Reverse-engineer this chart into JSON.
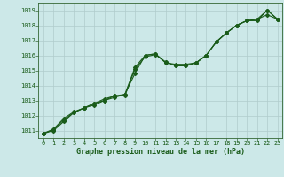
{
  "title": "Graphe pression niveau de la mer (hPa)",
  "background_color": "#cce8e8",
  "grid_color": "#b0cccc",
  "line_color": "#1a5c1a",
  "marker_color": "#1a5c1a",
  "xlim": [
    -0.5,
    23.5
  ],
  "ylim": [
    1010.5,
    1019.5
  ],
  "xticks": [
    0,
    1,
    2,
    3,
    4,
    5,
    6,
    7,
    8,
    9,
    10,
    11,
    12,
    13,
    14,
    15,
    16,
    17,
    18,
    19,
    20,
    21,
    22,
    23
  ],
  "yticks": [
    1011,
    1012,
    1013,
    1014,
    1015,
    1016,
    1017,
    1018,
    1019
  ],
  "series1_x": [
    0,
    1,
    2,
    3,
    4,
    5,
    6,
    7,
    8,
    9,
    10,
    11,
    12,
    13,
    14,
    15,
    16,
    17,
    18,
    19,
    20,
    21,
    22,
    23
  ],
  "series1_y": [
    1010.8,
    1011.0,
    1011.6,
    1012.2,
    1012.5,
    1012.7,
    1013.0,
    1013.2,
    1013.4,
    1014.8,
    1016.0,
    1016.1,
    1015.55,
    1015.3,
    1015.3,
    1015.5,
    1016.0,
    1016.9,
    1017.5,
    1018.0,
    1018.3,
    1018.3,
    1019.0,
    1018.4
  ],
  "series2_x": [
    0,
    1,
    2,
    3,
    4,
    5,
    6,
    7,
    8,
    9,
    10,
    11,
    12,
    13,
    14,
    15,
    16,
    17,
    18,
    19,
    20,
    21,
    22,
    23
  ],
  "series2_y": [
    1010.8,
    1011.05,
    1011.7,
    1012.2,
    1012.5,
    1012.8,
    1013.0,
    1013.3,
    1013.3,
    1015.1,
    1015.9,
    1016.05,
    1015.55,
    1015.3,
    1015.3,
    1015.5,
    1016.0,
    1016.9,
    1017.5,
    1018.0,
    1018.3,
    1018.4,
    1019.0,
    1018.4
  ],
  "series3_x": [
    0,
    1,
    2,
    3,
    4,
    5,
    6,
    7,
    8,
    9,
    10,
    11,
    12,
    13,
    14,
    15,
    16,
    17,
    18,
    19,
    20,
    21,
    22,
    23
  ],
  "series3_y": [
    1010.8,
    1011.1,
    1011.8,
    1012.25,
    1012.5,
    1012.8,
    1013.1,
    1013.3,
    1013.4,
    1015.2,
    1016.0,
    1016.1,
    1015.5,
    1015.4,
    1015.4,
    1015.5,
    1016.0,
    1016.9,
    1017.5,
    1018.0,
    1018.3,
    1018.4,
    1018.7,
    1018.4
  ]
}
